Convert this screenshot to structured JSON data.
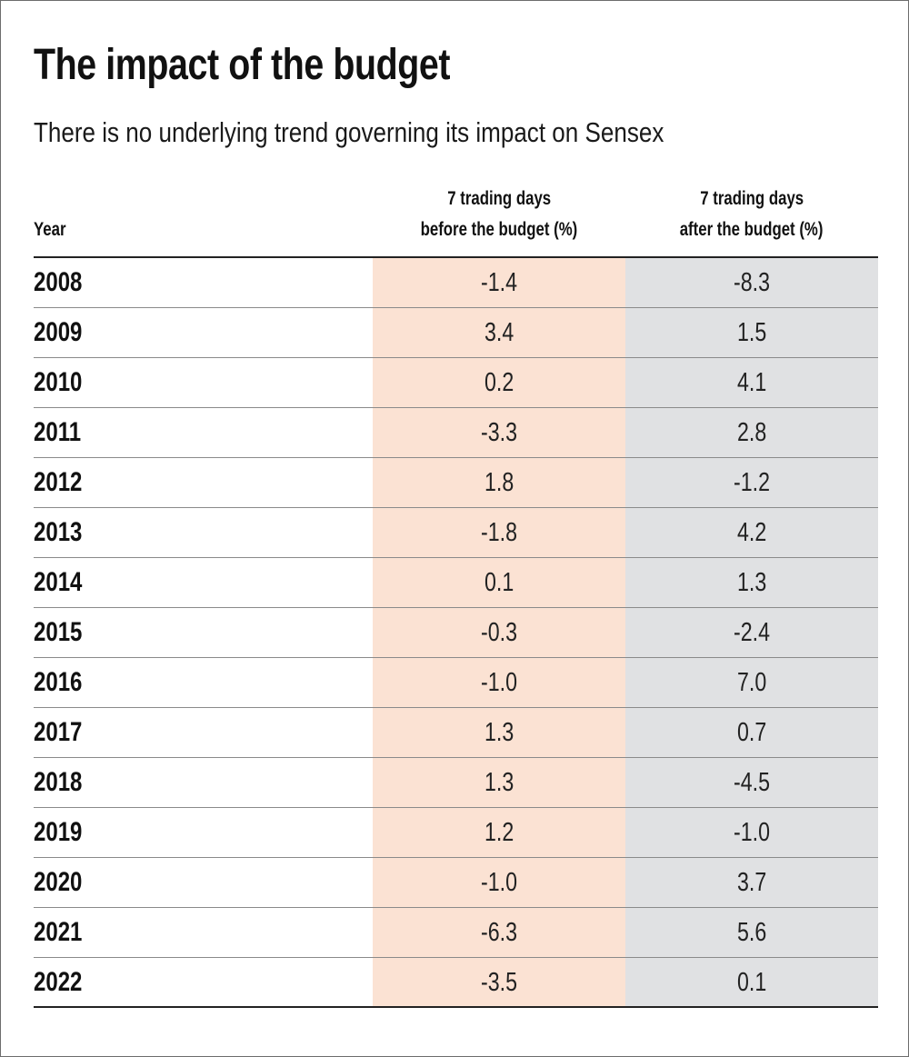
{
  "title": "The impact of the budget",
  "subtitle": "There is no underlying trend governing its impact on Sensex",
  "colors": {
    "before_column_bg": "#fbe2d3",
    "after_column_bg": "#e0e1e3"
  },
  "chart_data": {
    "type": "table",
    "title": "The impact of the budget",
    "subtitle": "There is no underlying trend governing its impact on Sensex",
    "columns": [
      "Year",
      "7 trading days before the budget (%)",
      "7 trading days after the budget (%)"
    ],
    "column_lines": [
      [
        "Year"
      ],
      [
        "7 trading days",
        "before the budget (%)"
      ],
      [
        "7 trading days",
        "after the budget (%)"
      ]
    ],
    "rows": [
      [
        "2008",
        "-1.4",
        "-8.3"
      ],
      [
        "2009",
        "3.4",
        "1.5"
      ],
      [
        "2010",
        "0.2",
        "4.1"
      ],
      [
        "2011",
        "-3.3",
        "2.8"
      ],
      [
        "2012",
        "1.8",
        "-1.2"
      ],
      [
        "2013",
        "-1.8",
        "4.2"
      ],
      [
        "2014",
        "0.1",
        "1.3"
      ],
      [
        "2015",
        "-0.3",
        "-2.4"
      ],
      [
        "2016",
        "-1.0",
        "7.0"
      ],
      [
        "2017",
        "1.3",
        "0.7"
      ],
      [
        "2018",
        "1.3",
        "-4.5"
      ],
      [
        "2019",
        "1.2",
        "-1.0"
      ],
      [
        "2020",
        "-1.0",
        "3.7"
      ],
      [
        "2021",
        "-6.3",
        "5.6"
      ],
      [
        "2022",
        "-3.5",
        "0.1"
      ]
    ]
  }
}
